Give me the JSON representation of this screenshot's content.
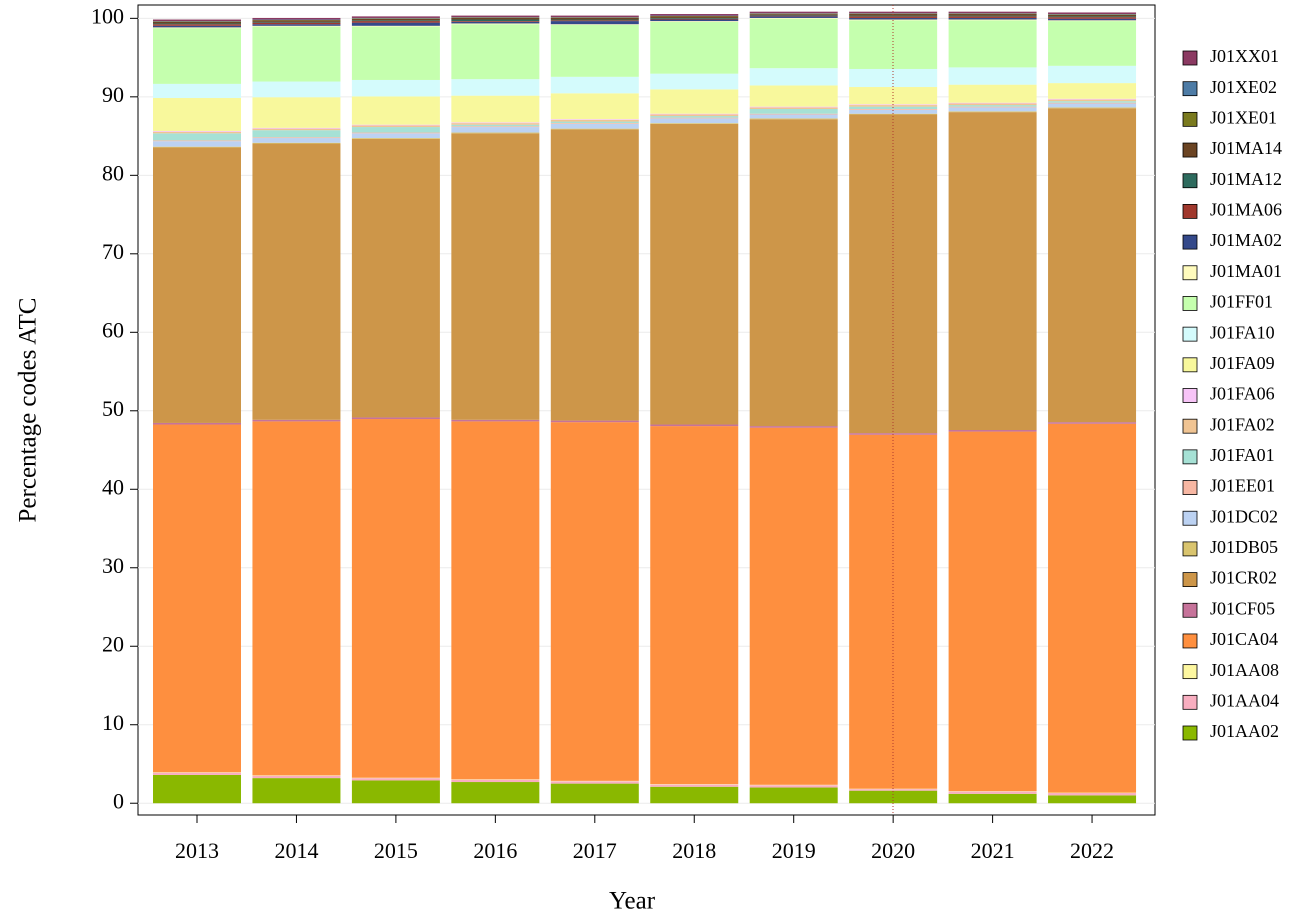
{
  "chart_data": {
    "type": "stacked_bar",
    "x_label": "Year",
    "y_label": "Percentage codes ATC",
    "categories": [
      "2013",
      "2014",
      "2015",
      "2016",
      "2017",
      "2018",
      "2019",
      "2020",
      "2021",
      "2022"
    ],
    "ylim": [
      -1.5,
      101.7
    ],
    "yticks": [
      0,
      10,
      20,
      30,
      40,
      50,
      60,
      70,
      80,
      90,
      100
    ],
    "grid": true,
    "series": [
      {
        "name": "J01AA02",
        "color": "#8ab800",
        "values": [
          3.6,
          3.2,
          2.9,
          2.7,
          2.5,
          2.1,
          2.0,
          1.6,
          1.2,
          1.0
        ]
      },
      {
        "name": "J01AA04",
        "color": "#f8aec0",
        "values": [
          0.3,
          0.3,
          0.3,
          0.3,
          0.3,
          0.3,
          0.3,
          0.2,
          0.3,
          0.3
        ]
      },
      {
        "name": "J01AA08",
        "color": "#fdf7a0",
        "values": [
          0.05,
          0.05,
          0.05,
          0.05,
          0.05,
          0.05,
          0.05,
          0.05,
          0.05,
          0.05
        ]
      },
      {
        "name": "J01CA04",
        "color": "#fe8f3f",
        "values": [
          44.3,
          45.1,
          45.7,
          45.6,
          45.7,
          45.6,
          45.5,
          45.1,
          45.8,
          47.0
        ]
      },
      {
        "name": "J01CF05",
        "color": "#c6739a",
        "values": [
          0.2,
          0.2,
          0.2,
          0.2,
          0.2,
          0.2,
          0.2,
          0.2,
          0.2,
          0.2
        ]
      },
      {
        "name": "J01CR02",
        "color": "#cd9649",
        "values": [
          35.1,
          35.2,
          35.5,
          36.5,
          37.1,
          38.3,
          39.1,
          40.6,
          40.5,
          40.0
        ]
      },
      {
        "name": "J01DB05",
        "color": "#d9c46e",
        "values": [
          0.1,
          0.1,
          0.1,
          0.1,
          0.1,
          0.1,
          0.1,
          0.1,
          0.1,
          0.1
        ]
      },
      {
        "name": "J01DC02",
        "color": "#bcd2f2",
        "values": [
          0.7,
          0.6,
          0.6,
          0.7,
          0.6,
          0.6,
          0.5,
          0.5,
          0.5,
          0.5
        ]
      },
      {
        "name": "J01EE01",
        "color": "#f7b7a3",
        "values": [
          0.1,
          0.1,
          0.1,
          0.1,
          0.1,
          0.1,
          0.1,
          0.1,
          0.1,
          0.1
        ]
      },
      {
        "name": "J01FA01",
        "color": "#a6e1d5",
        "values": [
          0.9,
          0.9,
          0.7,
          0.2,
          0.2,
          0.2,
          0.6,
          0.3,
          0.2,
          0.2
        ]
      },
      {
        "name": "J01FA02",
        "color": "#f0c493",
        "values": [
          0.2,
          0.2,
          0.2,
          0.2,
          0.2,
          0.2,
          0.2,
          0.2,
          0.2,
          0.2
        ]
      },
      {
        "name": "J01FA06",
        "color": "#f7c4f7",
        "values": [
          0.1,
          0.1,
          0.1,
          0.1,
          0.1,
          0.1,
          0.1,
          0.1,
          0.1,
          0.1
        ]
      },
      {
        "name": "J01FA09",
        "color": "#f8f89c",
        "values": [
          4.2,
          3.9,
          3.6,
          3.4,
          3.3,
          3.1,
          2.7,
          2.2,
          2.3,
          2.0
        ]
      },
      {
        "name": "J01FA10",
        "color": "#d4fbfc",
        "values": [
          1.8,
          2.0,
          2.1,
          2.1,
          2.1,
          2.0,
          2.2,
          2.3,
          2.2,
          2.2
        ]
      },
      {
        "name": "J01FF01",
        "color": "#c5ffae",
        "values": [
          7.1,
          7.0,
          6.8,
          7.0,
          6.6,
          6.6,
          6.3,
          6.2,
          6.0,
          5.7
        ]
      },
      {
        "name": "J01MA01",
        "color": "#fffbbd",
        "values": [
          0.1,
          0.1,
          0.1,
          0.1,
          0.1,
          0.1,
          0.1,
          0.1,
          0.1,
          0.1
        ]
      },
      {
        "name": "J01MA02",
        "color": "#34498a",
        "values": [
          0.2,
          0.2,
          0.4,
          0.2,
          0.4,
          0.2,
          0.2,
          0.2,
          0.2,
          0.2
        ]
      },
      {
        "name": "J01MA06",
        "color": "#a0382d",
        "values": [
          0.2,
          0.2,
          0.2,
          0.1,
          0.1,
          0.1,
          0.1,
          0.2,
          0.2,
          0.2
        ]
      },
      {
        "name": "J01MA12",
        "color": "#2e6b5e",
        "values": [
          0.1,
          0.1,
          0.1,
          0.2,
          0.1,
          0.1,
          0.1,
          0.1,
          0.1,
          0.1
        ]
      },
      {
        "name": "J01MA14",
        "color": "#6b4423",
        "values": [
          0.2,
          0.2,
          0.2,
          0.2,
          0.2,
          0.2,
          0.1,
          0.2,
          0.2,
          0.2
        ]
      },
      {
        "name": "J01XE01",
        "color": "#7a7a1e",
        "values": [
          0.05,
          0.05,
          0.05,
          0.05,
          0.05,
          0.05,
          0.05,
          0.05,
          0.05,
          0.05
        ]
      },
      {
        "name": "J01XE02",
        "color": "#4e7ca6",
        "values": [
          0.05,
          0.05,
          0.05,
          0.05,
          0.05,
          0.05,
          0.05,
          0.05,
          0.05,
          0.05
        ]
      },
      {
        "name": "J01XX01",
        "color": "#8b3a62",
        "values": [
          0.2,
          0.2,
          0.2,
          0.2,
          0.2,
          0.2,
          0.2,
          0.2,
          0.2,
          0.2
        ]
      }
    ]
  }
}
